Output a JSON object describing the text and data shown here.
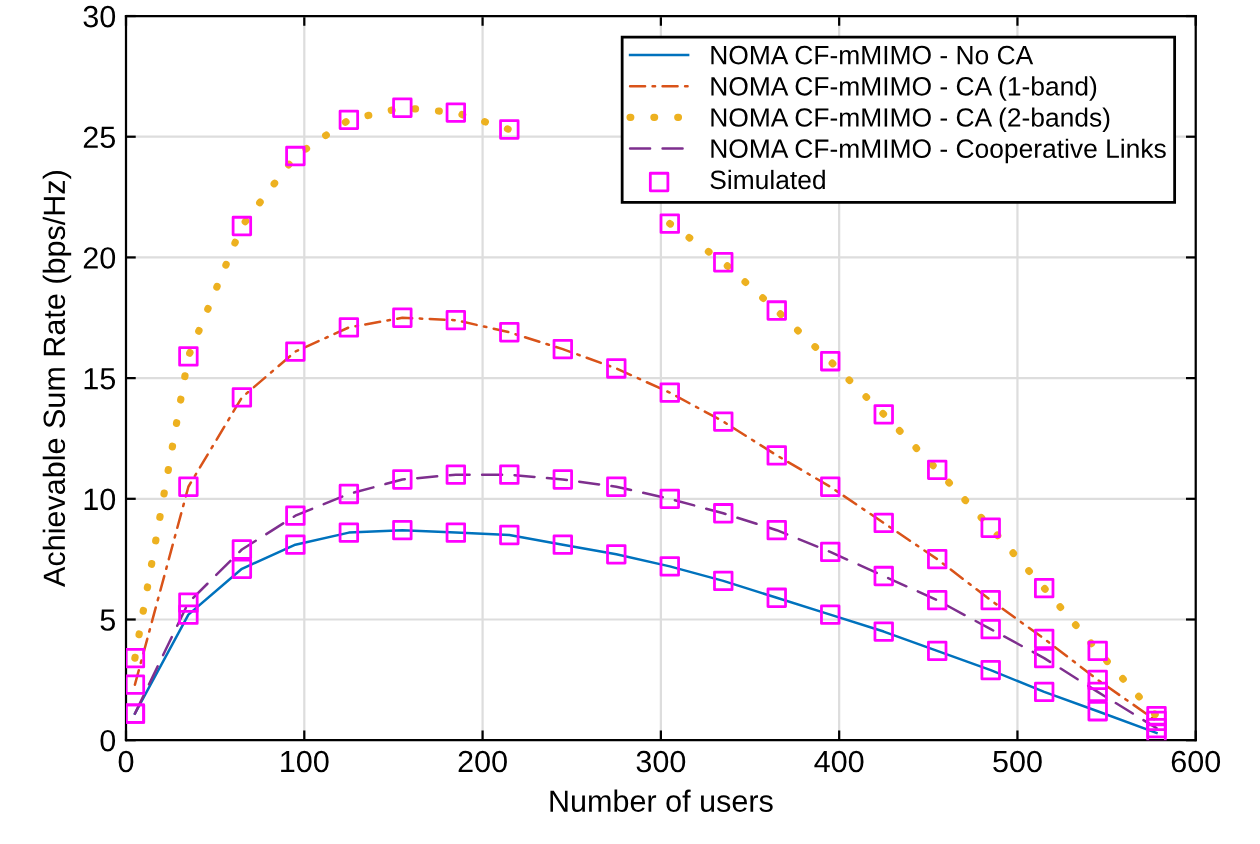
{
  "chart_data": {
    "type": "line",
    "xlabel": "Number of users",
    "ylabel": "Achievable Sum Rate (bps/Hz)",
    "xlim": [
      0,
      600
    ],
    "ylim": [
      0,
      30
    ],
    "xticks": [
      0,
      100,
      200,
      300,
      400,
      500,
      600
    ],
    "yticks": [
      0,
      5,
      10,
      15,
      20,
      25,
      30
    ],
    "grid": true,
    "legend": "top right",
    "series": [
      {
        "name": "NOMA CF-mMIMO - No CA",
        "color": "#0072bd",
        "line_style": "solid",
        "marker": "none",
        "x": [
          5,
          35,
          65,
          95,
          125,
          155,
          185,
          215,
          245,
          275,
          305,
          335,
          365,
          395,
          425,
          455,
          485,
          515,
          545,
          578
        ],
        "values": [
          1.1,
          5.2,
          7.1,
          8.1,
          8.6,
          8.7,
          8.6,
          8.5,
          8.1,
          7.7,
          7.2,
          6.6,
          5.9,
          5.2,
          4.5,
          3.7,
          2.9,
          2.0,
          1.2,
          0.3
        ]
      },
      {
        "name": "NOMA CF-mMIMO - CA (1-band)",
        "color": "#d95319",
        "line_style": "dashdot",
        "marker": "none",
        "x": [
          5,
          35,
          65,
          95,
          125,
          155,
          185,
          215,
          245,
          275,
          305,
          335,
          365,
          395,
          425,
          455,
          485,
          515,
          545,
          578
        ],
        "values": [
          2.3,
          10.5,
          14.2,
          16.1,
          17.1,
          17.5,
          17.4,
          16.9,
          16.2,
          15.4,
          14.4,
          13.2,
          11.8,
          10.5,
          9.0,
          7.5,
          5.8,
          4.2,
          2.5,
          0.8
        ]
      },
      {
        "name": "NOMA CF-mMIMO - CA (2-bands)",
        "color": "#edb120",
        "line_style": "dotted",
        "marker": "none",
        "x": [
          5,
          35,
          65,
          95,
          125,
          155,
          185,
          215,
          245,
          275,
          305,
          335,
          365,
          395,
          425,
          455,
          485,
          515,
          545,
          578
        ],
        "values": [
          3.4,
          15.9,
          21.3,
          24.2,
          25.7,
          26.2,
          26.0,
          25.3,
          null,
          null,
          21.4,
          19.8,
          17.8,
          15.7,
          13.5,
          11.2,
          8.8,
          6.3,
          3.7,
          1.0
        ]
      },
      {
        "name": "NOMA CF-mMIMO - Cooperative Links",
        "color": "#7e2f8e",
        "line_style": "dashed",
        "marker": "none",
        "x": [
          5,
          35,
          65,
          95,
          125,
          155,
          185,
          215,
          245,
          275,
          305,
          335,
          365,
          395,
          425,
          455,
          485,
          515,
          545,
          578
        ],
        "values": [
          1.1,
          5.7,
          7.9,
          9.3,
          10.2,
          10.8,
          11.0,
          11.0,
          10.8,
          10.5,
          10.0,
          9.4,
          8.7,
          7.8,
          6.8,
          5.8,
          4.6,
          3.4,
          2.0,
          0.5
        ]
      },
      {
        "name": "Simulated",
        "type": "scatter",
        "color": "#ff00ff",
        "marker": "square",
        "x": [
          5,
          35,
          65,
          95,
          125,
          155,
          185,
          215,
          245,
          275,
          305,
          335,
          365,
          395,
          425,
          455,
          485,
          515,
          545,
          578,
          5,
          35,
          65,
          95,
          125,
          155,
          185,
          215,
          245,
          275,
          305,
          335,
          365,
          395,
          425,
          455,
          485,
          515,
          545,
          578,
          5,
          35,
          65,
          95,
          125,
          155,
          185,
          215,
          245,
          275,
          305,
          335,
          365,
          395,
          425,
          455,
          485,
          515,
          545,
          578,
          5,
          35,
          65,
          95,
          125,
          155,
          185,
          215,
          245,
          275,
          305,
          335,
          365,
          395,
          425,
          455,
          485,
          515,
          545,
          578
        ],
        "values": [
          1.1,
          5.2,
          7.1,
          8.1,
          8.6,
          8.7,
          8.6,
          8.5,
          8.1,
          7.7,
          7.2,
          6.6,
          5.9,
          5.2,
          4.5,
          3.7,
          2.9,
          2.0,
          1.2,
          0.3,
          2.3,
          10.5,
          14.2,
          16.1,
          17.1,
          17.5,
          17.4,
          16.9,
          16.2,
          15.4,
          14.4,
          13.2,
          11.8,
          10.5,
          9.0,
          7.5,
          5.8,
          4.2,
          2.5,
          0.8,
          3.4,
          15.9,
          21.3,
          24.2,
          25.7,
          26.2,
          26.0,
          25.3,
          null,
          null,
          21.4,
          19.8,
          17.8,
          15.7,
          13.5,
          11.2,
          8.8,
          6.3,
          3.7,
          1.0,
          1.1,
          5.7,
          7.9,
          9.3,
          10.2,
          10.8,
          11.0,
          11.0,
          10.8,
          10.5,
          10.0,
          9.4,
          8.7,
          7.8,
          6.8,
          5.8,
          4.6,
          3.4,
          2.0,
          0.5
        ]
      }
    ]
  }
}
